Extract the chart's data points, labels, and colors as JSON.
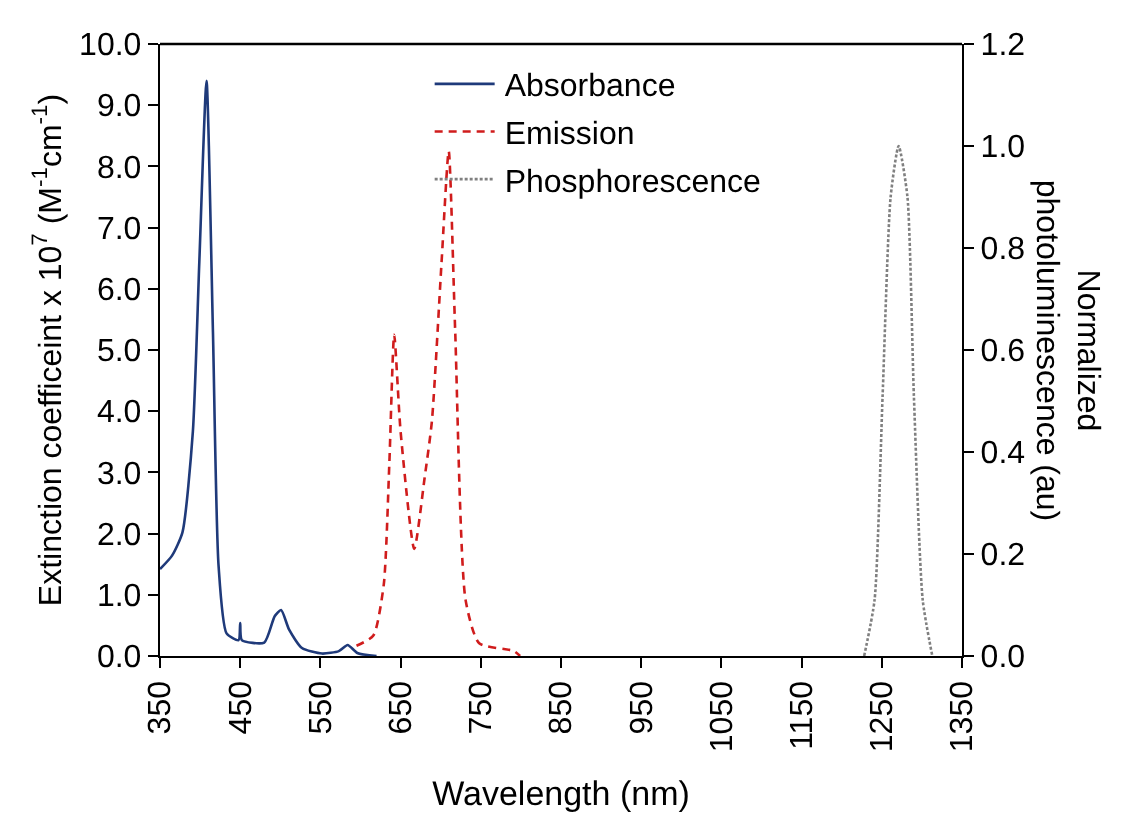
{
  "chart_data": {
    "type": "line",
    "xlabel": "Wavelength (nm)",
    "ylabel": "Extinction coefficeint x 10$^{7}$ (M$^{-1}$cm$^{-1}$)",
    "y2label": "Normalized\nphotoluminescence (au)",
    "xlim": [
      350,
      1350
    ],
    "xticks": [
      350,
      450,
      550,
      650,
      750,
      850,
      950,
      1050,
      1150,
      1250,
      1350
    ],
    "ylim": [
      0,
      10
    ],
    "yticks": [
      {
        "value": 0,
        "label": "0.0"
      },
      {
        "value": 1,
        "label": "1.0"
      },
      {
        "value": 2,
        "label": "2.0"
      },
      {
        "value": 3,
        "label": "3.0"
      },
      {
        "value": 4,
        "label": "4.0"
      },
      {
        "value": 5,
        "label": "5.0"
      },
      {
        "value": 6,
        "label": "6.0"
      },
      {
        "value": 7,
        "label": "7.0"
      },
      {
        "value": 8,
        "label": "8.0"
      },
      {
        "value": 9,
        "label": "9.0"
      },
      {
        "value": 10,
        "label": "10.0"
      }
    ],
    "y2lim": [
      0,
      1.2
    ],
    "y2ticks": [
      {
        "value": 0,
        "label": "0.0"
      },
      0.2,
      0.4,
      0.6,
      0.8,
      {
        "value": 1,
        "label": "1.0"
      },
      1.2
    ],
    "legend": "top",
    "marker": "none",
    "series": [
      {
        "name": "Absorbance",
        "color": "#1f3a7a",
        "line_style": "solid",
        "x": [
          350,
          365,
          378,
          391,
          399,
          408,
          416,
          423,
          433,
          448,
          450,
          452,
          480,
          493,
          501,
          511,
          527,
          552,
          573,
          584,
          596,
          620
        ],
        "values": [
          1.42,
          1.64,
          2.02,
          3.67,
          6.43,
          9.4,
          5.3,
          1.48,
          0.37,
          0.26,
          0.54,
          0.26,
          0.22,
          0.65,
          0.75,
          0.43,
          0.13,
          0.04,
          0.08,
          0.18,
          0.05,
          0
        ]
      },
      {
        "name": "Emission",
        "color": "#d01c1c",
        "line_style": "dashed",
        "axis": "y2",
        "x": [
          595,
          616,
          629,
          636,
          642,
          650,
          667,
          680,
          689,
          701,
          710,
          718,
          731,
          748,
          791,
          799
        ],
        "values": [
          0.02,
          0.04,
          0.14,
          0.38,
          0.63,
          0.44,
          0.21,
          0.35,
          0.46,
          0.77,
          0.99,
          0.64,
          0.11,
          0.025,
          0.01,
          0
        ]
      },
      {
        "name": "Phosphorescence",
        "color": "#808080",
        "line_style": "dotted",
        "axis": "y2",
        "x": [
          1228,
          1241,
          1251,
          1261,
          1271,
          1282,
          1290,
          1301,
          1313
        ],
        "values": [
          0,
          0.11,
          0.51,
          0.9,
          1.0,
          0.9,
          0.51,
          0.11,
          0
        ]
      }
    ]
  }
}
